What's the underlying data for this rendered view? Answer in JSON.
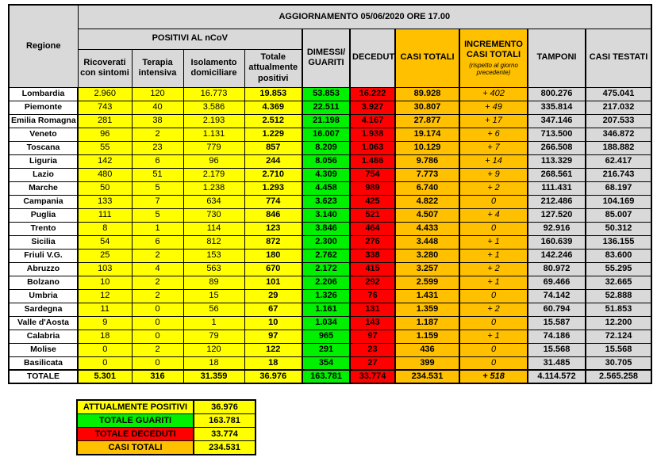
{
  "colors": {
    "yellow_positivi": "#FFFF00",
    "green_guariti": "#00F000",
    "red_deceduti": "#FF0000",
    "orange_casi_totali": "#FFC000",
    "gray_header": "#D9D9D9",
    "border": "#000000"
  },
  "chart_data": {
    "type": "table",
    "title": "AGGIORNAMENTO 05/06/2020 ORE 17.00",
    "region_column_header": "Regione",
    "positivi_group_header": "POSITIVI AL nCoV",
    "positivi_sub_headers": [
      "Ricoverati con sintomi",
      "Terapia intensiva",
      "Isolamento domiciliare",
      "Totale attualmente positivi"
    ],
    "right_column_headers": [
      {
        "label": "DIMESSI/ GUARITI"
      },
      {
        "label": "DECEDUTI"
      },
      {
        "label": "CASI TOTALI"
      },
      {
        "label": "INCREMENTO CASI TOTALI",
        "sub": "(rispetto al giorno precedente)"
      },
      {
        "label": "TAMPONI"
      },
      {
        "label": "CASI TESTATI"
      }
    ],
    "rows": [
      {
        "region": "Lombardia",
        "values": [
          "2.960",
          "120",
          "16.773",
          "19.853",
          "53.853",
          "16.222",
          "89.928",
          "+ 402",
          "800.276",
          "475.041"
        ]
      },
      {
        "region": "Piemonte",
        "values": [
          "743",
          "40",
          "3.586",
          "4.369",
          "22.511",
          "3.927",
          "30.807",
          "+ 49",
          "335.814",
          "217.032"
        ]
      },
      {
        "region": "Emilia Romagna",
        "values": [
          "281",
          "38",
          "2.193",
          "2.512",
          "21.198",
          "4.167",
          "27.877",
          "+ 17",
          "347.146",
          "207.533"
        ]
      },
      {
        "region": "Veneto",
        "values": [
          "96",
          "2",
          "1.131",
          "1.229",
          "16.007",
          "1.938",
          "19.174",
          "+ 6",
          "713.500",
          "346.872"
        ]
      },
      {
        "region": "Toscana",
        "values": [
          "55",
          "23",
          "779",
          "857",
          "8.209",
          "1.063",
          "10.129",
          "+ 7",
          "266.508",
          "188.882"
        ]
      },
      {
        "region": "Liguria",
        "values": [
          "142",
          "6",
          "96",
          "244",
          "8.056",
          "1.486",
          "9.786",
          "+ 14",
          "113.329",
          "62.417"
        ]
      },
      {
        "region": "Lazio",
        "values": [
          "480",
          "51",
          "2.179",
          "2.710",
          "4.309",
          "754",
          "7.773",
          "+ 9",
          "268.561",
          "216.743"
        ]
      },
      {
        "region": "Marche",
        "values": [
          "50",
          "5",
          "1.238",
          "1.293",
          "4.458",
          "989",
          "6.740",
          "+ 2",
          "111.431",
          "68.197"
        ]
      },
      {
        "region": "Campania",
        "values": [
          "133",
          "7",
          "634",
          "774",
          "3.623",
          "425",
          "4.822",
          "0",
          "212.486",
          "104.169"
        ]
      },
      {
        "region": "Puglia",
        "values": [
          "111",
          "5",
          "730",
          "846",
          "3.140",
          "521",
          "4.507",
          "+ 4",
          "127.520",
          "85.007"
        ]
      },
      {
        "region": "Trento",
        "values": [
          "8",
          "1",
          "114",
          "123",
          "3.846",
          "464",
          "4.433",
          "0",
          "92.916",
          "50.312"
        ]
      },
      {
        "region": "Sicilia",
        "values": [
          "54",
          "6",
          "812",
          "872",
          "2.300",
          "276",
          "3.448",
          "+ 1",
          "160.639",
          "136.155"
        ]
      },
      {
        "region": "Friuli V.G.",
        "values": [
          "25",
          "2",
          "153",
          "180",
          "2.762",
          "338",
          "3.280",
          "+ 1",
          "142.246",
          "83.600"
        ]
      },
      {
        "region": "Abruzzo",
        "values": [
          "103",
          "4",
          "563",
          "670",
          "2.172",
          "415",
          "3.257",
          "+ 2",
          "80.972",
          "55.295"
        ]
      },
      {
        "region": "Bolzano",
        "values": [
          "10",
          "2",
          "89",
          "101",
          "2.206",
          "292",
          "2.599",
          "+ 1",
          "69.466",
          "32.665"
        ]
      },
      {
        "region": "Umbria",
        "values": [
          "12",
          "2",
          "15",
          "29",
          "1.326",
          "76",
          "1.431",
          "0",
          "74.142",
          "52.888"
        ]
      },
      {
        "region": "Sardegna",
        "values": [
          "11",
          "0",
          "56",
          "67",
          "1.161",
          "131",
          "1.359",
          "+ 2",
          "60.794",
          "51.853"
        ]
      },
      {
        "region": "Valle d'Aosta",
        "values": [
          "9",
          "0",
          "1",
          "10",
          "1.034",
          "143",
          "1.187",
          "0",
          "15.587",
          "12.200"
        ]
      },
      {
        "region": "Calabria",
        "values": [
          "18",
          "0",
          "79",
          "97",
          "965",
          "97",
          "1.159",
          "+ 1",
          "74.186",
          "72.124"
        ]
      },
      {
        "region": "Molise",
        "values": [
          "0",
          "2",
          "120",
          "122",
          "291",
          "23",
          "436",
          "0",
          "15.568",
          "15.568"
        ]
      },
      {
        "region": "Basilicata",
        "values": [
          "0",
          "0",
          "18",
          "18",
          "354",
          "27",
          "399",
          "0",
          "31.485",
          "30.705"
        ]
      }
    ],
    "total_row": {
      "region": "TOTALE",
      "values": [
        "5.301",
        "316",
        "31.359",
        "36.976",
        "163.781",
        "33.774",
        "234.531",
        "+ 518",
        "4.114.572",
        "2.565.258"
      ]
    },
    "summary": [
      {
        "label": "ATTUALMENTE POSITIVI",
        "value": "36.976",
        "color": "#FFFF00"
      },
      {
        "label": "TOTALE GUARITI",
        "value": "163.781",
        "color": "#00F000"
      },
      {
        "label": "TOTALE DECEDUTI",
        "value": "33.774",
        "color": "#FF0000"
      },
      {
        "label": "CASI TOTALI",
        "value": "234.531",
        "color": "#FFC000"
      }
    ]
  }
}
